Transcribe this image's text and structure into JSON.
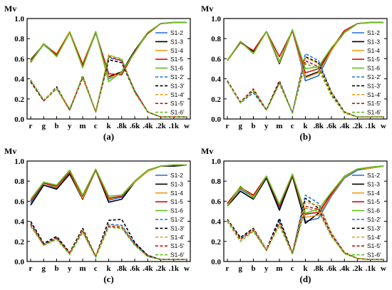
{
  "chart_data": [
    {
      "type": "line",
      "panel_label": "(a)",
      "ylabel": "Mv",
      "categories": [
        "r",
        "g",
        "b",
        "y",
        "m",
        "c",
        "k",
        ".8k",
        ".6k",
        ".4k",
        ".2k",
        ".1k",
        "w"
      ],
      "y_ticks": [
        "0.0",
        "0.2",
        "0.4",
        "0.6",
        "0.8",
        "1.0"
      ],
      "ylim": [
        0,
        1
      ],
      "legend_position": "right",
      "series": [
        {
          "name": "S1-2",
          "color": "#1f6fd6",
          "dash": "solid",
          "values": [
            0.57,
            0.74,
            0.63,
            0.86,
            0.52,
            0.87,
            0.4,
            0.46,
            0.67,
            0.86,
            0.95,
            0.96,
            0.96
          ]
        },
        {
          "name": "S1-3",
          "color": "#000000",
          "dash": "solid",
          "values": [
            0.59,
            0.74,
            0.64,
            0.86,
            0.52,
            0.86,
            0.42,
            0.47,
            0.68,
            0.86,
            0.95,
            0.96,
            0.96
          ]
        },
        {
          "name": "S1-4",
          "color": "#f0a020",
          "dash": "solid",
          "values": [
            0.58,
            0.74,
            0.65,
            0.87,
            0.55,
            0.87,
            0.41,
            0.45,
            0.67,
            0.86,
            0.95,
            0.96,
            0.96
          ]
        },
        {
          "name": "S1-5",
          "color": "#d01010",
          "dash": "solid",
          "values": [
            0.57,
            0.75,
            0.64,
            0.86,
            0.54,
            0.86,
            0.45,
            0.44,
            0.67,
            0.85,
            0.95,
            0.96,
            0.96
          ]
        },
        {
          "name": "S1-6",
          "color": "#60c020",
          "dash": "solid",
          "values": [
            0.56,
            0.75,
            0.62,
            0.86,
            0.51,
            0.87,
            0.37,
            0.47,
            0.66,
            0.86,
            0.95,
            0.96,
            0.96
          ]
        },
        {
          "name": "S1-2'",
          "color": "#1f6fd6",
          "dash": "dash",
          "values": [
            0.38,
            0.18,
            0.31,
            0.09,
            0.42,
            0.07,
            0.61,
            0.58,
            0.28,
            0.07,
            0.02,
            0.02,
            0.02
          ]
        },
        {
          "name": "S1-3'",
          "color": "#000000",
          "dash": "dash",
          "values": [
            0.37,
            0.18,
            0.32,
            0.09,
            0.43,
            0.07,
            0.59,
            0.56,
            0.27,
            0.07,
            0.02,
            0.02,
            0.02
          ]
        },
        {
          "name": "S1-4'",
          "color": "#f0a020",
          "dash": "dash",
          "values": [
            0.39,
            0.19,
            0.31,
            0.1,
            0.42,
            0.07,
            0.64,
            0.59,
            0.27,
            0.07,
            0.02,
            0.02,
            0.02
          ]
        },
        {
          "name": "S1-5'",
          "color": "#d01010",
          "dash": "dash",
          "values": [
            0.38,
            0.18,
            0.3,
            0.09,
            0.41,
            0.07,
            0.62,
            0.58,
            0.28,
            0.07,
            0.02,
            0.02,
            0.02
          ]
        },
        {
          "name": "S1-6'",
          "color": "#60c020",
          "dash": "dash",
          "values": [
            0.39,
            0.19,
            0.3,
            0.1,
            0.42,
            0.07,
            0.63,
            0.6,
            0.26,
            0.07,
            0.02,
            0.02,
            0.02
          ]
        }
      ]
    },
    {
      "type": "line",
      "panel_label": "(b)",
      "ylabel": "Mv",
      "categories": [
        "r",
        "g",
        "b",
        "y",
        "m",
        "c",
        "k",
        ".8k",
        ".6k",
        ".4k",
        ".2k",
        ".1k",
        "w"
      ],
      "y_ticks": [
        "0.0",
        "0.2",
        "0.4",
        "0.6",
        "0.8",
        "1.0"
      ],
      "ylim": [
        0,
        1
      ],
      "legend_position": "right",
      "series": [
        {
          "name": "S1-2",
          "color": "#1f6fd6",
          "dash": "solid",
          "values": [
            0.58,
            0.76,
            0.67,
            0.87,
            0.57,
            0.88,
            0.38,
            0.43,
            0.68,
            0.87,
            0.95,
            0.96,
            0.96
          ]
        },
        {
          "name": "S1-3",
          "color": "#000000",
          "dash": "solid",
          "values": [
            0.58,
            0.77,
            0.67,
            0.87,
            0.55,
            0.88,
            0.42,
            0.47,
            0.69,
            0.86,
            0.95,
            0.96,
            0.96
          ]
        },
        {
          "name": "S1-4",
          "color": "#f0a020",
          "dash": "solid",
          "values": [
            0.59,
            0.76,
            0.68,
            0.87,
            0.56,
            0.88,
            0.41,
            0.46,
            0.68,
            0.87,
            0.95,
            0.96,
            0.96
          ]
        },
        {
          "name": "S1-5",
          "color": "#d01010",
          "dash": "solid",
          "values": [
            0.58,
            0.76,
            0.68,
            0.87,
            0.62,
            0.88,
            0.46,
            0.5,
            0.7,
            0.88,
            0.95,
            0.96,
            0.96
          ]
        },
        {
          "name": "S1-6",
          "color": "#60c020",
          "dash": "solid",
          "values": [
            0.58,
            0.77,
            0.65,
            0.87,
            0.57,
            0.89,
            0.5,
            0.52,
            0.71,
            0.86,
            0.95,
            0.96,
            0.96
          ]
        },
        {
          "name": "S1-2'",
          "color": "#1f6fd6",
          "dash": "dash",
          "values": [
            0.38,
            0.16,
            0.26,
            0.09,
            0.37,
            0.06,
            0.65,
            0.58,
            0.27,
            0.07,
            0.02,
            0.02,
            0.02
          ]
        },
        {
          "name": "S1-3'",
          "color": "#000000",
          "dash": "dash",
          "values": [
            0.38,
            0.17,
            0.28,
            0.09,
            0.38,
            0.06,
            0.62,
            0.56,
            0.26,
            0.07,
            0.02,
            0.02,
            0.02
          ]
        },
        {
          "name": "S1-4'",
          "color": "#f0a020",
          "dash": "dash",
          "values": [
            0.37,
            0.16,
            0.29,
            0.09,
            0.37,
            0.06,
            0.61,
            0.55,
            0.26,
            0.07,
            0.02,
            0.02,
            0.02
          ]
        },
        {
          "name": "S1-5'",
          "color": "#d01010",
          "dash": "dash",
          "values": [
            0.38,
            0.17,
            0.3,
            0.09,
            0.36,
            0.06,
            0.58,
            0.52,
            0.24,
            0.06,
            0.02,
            0.02,
            0.02
          ]
        },
        {
          "name": "S1-6'",
          "color": "#60c020",
          "dash": "dash",
          "values": [
            0.37,
            0.16,
            0.28,
            0.09,
            0.35,
            0.06,
            0.55,
            0.5,
            0.23,
            0.06,
            0.02,
            0.02,
            0.02
          ]
        }
      ]
    },
    {
      "type": "line",
      "panel_label": "(c)",
      "ylabel": "Mv",
      "categories": [
        "r",
        "g",
        "b",
        "y",
        "m",
        "c",
        "k",
        ".8k",
        ".6k",
        ".4k",
        ".2k",
        ".1k",
        "w"
      ],
      "y_ticks": [
        "0.0",
        "0.2",
        "0.4",
        "0.6",
        "0.8",
        "1.0"
      ],
      "ylim": [
        0,
        1
      ],
      "legend_position": "right",
      "series": [
        {
          "name": "S1-2",
          "color": "#1f6fd6",
          "dash": "solid",
          "values": [
            0.58,
            0.78,
            0.73,
            0.88,
            0.64,
            0.91,
            0.61,
            0.64,
            0.79,
            0.9,
            0.95,
            0.95,
            0.96
          ]
        },
        {
          "name": "S1-3",
          "color": "#000000",
          "dash": "solid",
          "values": [
            0.56,
            0.76,
            0.72,
            0.87,
            0.62,
            0.91,
            0.59,
            0.62,
            0.79,
            0.9,
            0.95,
            0.95,
            0.96
          ]
        },
        {
          "name": "S1-4",
          "color": "#f0a020",
          "dash": "solid",
          "values": [
            0.6,
            0.78,
            0.74,
            0.89,
            0.63,
            0.91,
            0.62,
            0.65,
            0.79,
            0.9,
            0.95,
            0.96,
            0.96
          ]
        },
        {
          "name": "S1-5",
          "color": "#d01010",
          "dash": "solid",
          "values": [
            0.6,
            0.78,
            0.75,
            0.89,
            0.65,
            0.91,
            0.63,
            0.65,
            0.8,
            0.91,
            0.95,
            0.96,
            0.96
          ]
        },
        {
          "name": "S1-6",
          "color": "#60c020",
          "dash": "solid",
          "values": [
            0.62,
            0.79,
            0.76,
            0.91,
            0.66,
            0.92,
            0.65,
            0.66,
            0.8,
            0.91,
            0.95,
            0.96,
            0.96
          ]
        },
        {
          "name": "S1-2'",
          "color": "#1f6fd6",
          "dash": "dash",
          "values": [
            0.38,
            0.17,
            0.24,
            0.08,
            0.31,
            0.05,
            0.37,
            0.36,
            0.18,
            0.06,
            0.02,
            0.02,
            0.02
          ]
        },
        {
          "name": "S1-3'",
          "color": "#000000",
          "dash": "dash",
          "values": [
            0.4,
            0.18,
            0.25,
            0.09,
            0.33,
            0.05,
            0.41,
            0.42,
            0.19,
            0.06,
            0.02,
            0.02,
            0.02
          ]
        },
        {
          "name": "S1-4'",
          "color": "#f0a020",
          "dash": "dash",
          "values": [
            0.37,
            0.16,
            0.23,
            0.08,
            0.31,
            0.05,
            0.36,
            0.35,
            0.17,
            0.05,
            0.02,
            0.02,
            0.02
          ]
        },
        {
          "name": "S1-5'",
          "color": "#d01010",
          "dash": "dash",
          "values": [
            0.37,
            0.17,
            0.23,
            0.08,
            0.3,
            0.05,
            0.35,
            0.34,
            0.17,
            0.05,
            0.02,
            0.02,
            0.02
          ]
        },
        {
          "name": "S1-6'",
          "color": "#60c020",
          "dash": "dash",
          "values": [
            0.35,
            0.16,
            0.22,
            0.07,
            0.29,
            0.04,
            0.34,
            0.33,
            0.16,
            0.05,
            0.02,
            0.02,
            0.02
          ]
        }
      ]
    },
    {
      "type": "line",
      "panel_label": "(d)",
      "ylabel": "Mv",
      "categories": [
        "r",
        "g",
        "b",
        "y",
        "m",
        "c",
        "k",
        ".8k",
        ".6k",
        ".4k",
        ".2k",
        ".1k",
        "w"
      ],
      "y_ticks": [
        "0.0",
        "0.2",
        "0.4",
        "0.6",
        "0.8",
        "1.0"
      ],
      "ylim": [
        0,
        1
      ],
      "legend_position": "right",
      "series": [
        {
          "name": "S1-2",
          "color": "#1f6fd6",
          "dash": "solid",
          "values": [
            0.57,
            0.72,
            0.64,
            0.84,
            0.53,
            0.86,
            0.4,
            0.43,
            0.65,
            0.83,
            0.91,
            0.93,
            0.95
          ]
        },
        {
          "name": "S1-3",
          "color": "#000000",
          "dash": "solid",
          "values": [
            0.55,
            0.7,
            0.62,
            0.83,
            0.51,
            0.85,
            0.38,
            0.48,
            0.68,
            0.84,
            0.92,
            0.93,
            0.95
          ]
        },
        {
          "name": "S1-4",
          "color": "#f0a020",
          "dash": "solid",
          "values": [
            0.56,
            0.73,
            0.65,
            0.85,
            0.56,
            0.87,
            0.44,
            0.46,
            0.66,
            0.84,
            0.92,
            0.93,
            0.95
          ]
        },
        {
          "name": "S1-5",
          "color": "#d01010",
          "dash": "solid",
          "values": [
            0.58,
            0.74,
            0.66,
            0.85,
            0.55,
            0.86,
            0.47,
            0.49,
            0.67,
            0.85,
            0.92,
            0.94,
            0.95
          ]
        },
        {
          "name": "S1-6",
          "color": "#60c020",
          "dash": "solid",
          "values": [
            0.55,
            0.75,
            0.63,
            0.85,
            0.57,
            0.87,
            0.48,
            0.52,
            0.69,
            0.85,
            0.92,
            0.94,
            0.95
          ]
        },
        {
          "name": "S1-2'",
          "color": "#1f6fd6",
          "dash": "dash",
          "values": [
            0.41,
            0.23,
            0.33,
            0.12,
            0.41,
            0.08,
            0.66,
            0.58,
            0.28,
            0.09,
            0.03,
            0.02,
            0.02
          ]
        },
        {
          "name": "S1-3'",
          "color": "#000000",
          "dash": "dash",
          "values": [
            0.42,
            0.24,
            0.33,
            0.12,
            0.43,
            0.08,
            0.63,
            0.53,
            0.27,
            0.09,
            0.03,
            0.02,
            0.02
          ]
        },
        {
          "name": "S1-4'",
          "color": "#f0a020",
          "dash": "dash",
          "values": [
            0.41,
            0.22,
            0.32,
            0.12,
            0.38,
            0.08,
            0.59,
            0.56,
            0.28,
            0.09,
            0.03,
            0.02,
            0.02
          ]
        },
        {
          "name": "S1-5'",
          "color": "#d01010",
          "dash": "dash",
          "values": [
            0.4,
            0.22,
            0.31,
            0.11,
            0.39,
            0.08,
            0.55,
            0.52,
            0.26,
            0.08,
            0.03,
            0.02,
            0.02
          ]
        },
        {
          "name": "S1-6'",
          "color": "#60c020",
          "dash": "dash",
          "values": [
            0.4,
            0.2,
            0.3,
            0.11,
            0.36,
            0.07,
            0.53,
            0.5,
            0.25,
            0.08,
            0.03,
            0.02,
            0.02
          ]
        }
      ]
    }
  ]
}
